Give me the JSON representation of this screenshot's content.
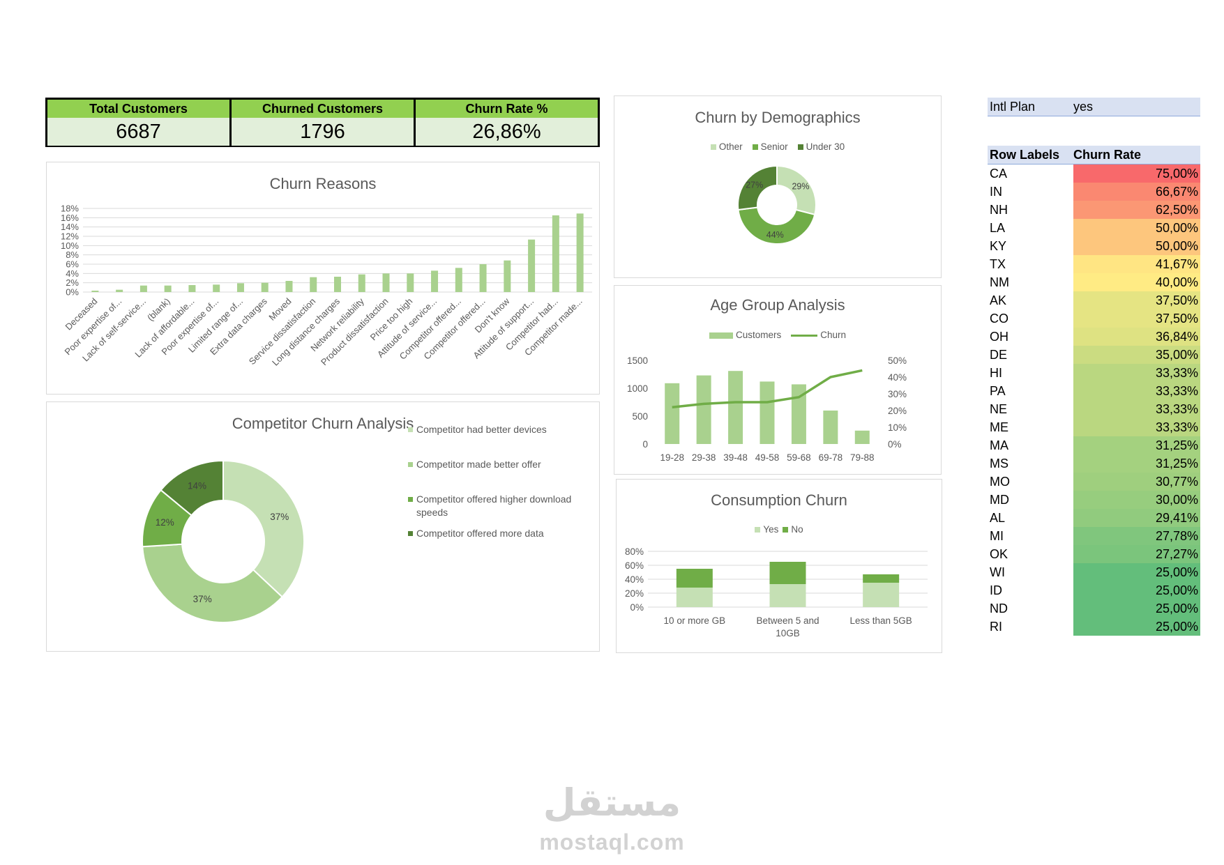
{
  "kpis": [
    {
      "label": "Total Customers",
      "value": "6687"
    },
    {
      "label": "Churned Customers",
      "value": "1796"
    },
    {
      "label": "Churn Rate %",
      "value": "26,86%"
    }
  ],
  "colors": {
    "light": "#a9d18e",
    "mid": "#70ad47",
    "dark": "#548235",
    "pale": "#c5e0b4",
    "header_green": "#92d050",
    "value_bg": "#e2efda"
  },
  "chart_data": [
    {
      "id": "churn-reasons",
      "type": "bar",
      "title": "Churn Reasons",
      "categories": [
        "Deceased",
        "Poor expertise of...",
        "Lack of self-service...",
        "(blank)",
        "Lack of affordable...",
        "Poor expertise of...",
        "Limited range of...",
        "Extra data charges",
        "Moved",
        "Service dissatisfaction",
        "Long distance charges",
        "Network reliability",
        "Product dissatisfaction",
        "Price too high",
        "Attitude of service...",
        "Competitor offered...",
        "Competitor offered...",
        "Don't know",
        "Attitude of support...",
        "Competitor had...",
        "Competitor made..."
      ],
      "values": [
        0.3,
        0.5,
        1.4,
        1.4,
        1.5,
        1.6,
        1.9,
        2.0,
        2.4,
        3.2,
        3.3,
        3.8,
        4.0,
        4.0,
        4.6,
        5.2,
        6.0,
        6.8,
        11.3,
        16.5,
        16.9
      ],
      "yticks": [
        "0%",
        "2%",
        "4%",
        "6%",
        "8%",
        "10%",
        "12%",
        "14%",
        "16%",
        "18%"
      ],
      "ylim": [
        0,
        18
      ]
    },
    {
      "id": "competitor-churn",
      "type": "pie",
      "title": "Competitor Churn Analysis",
      "labels": [
        "Competitor had better devices",
        "Competitor made better offer",
        "Competitor offered higher download speeds",
        "Competitor offered more data"
      ],
      "values": [
        37,
        37,
        12,
        14
      ],
      "value_labels": [
        "37%",
        "37%",
        "12%",
        "14%"
      ],
      "colors": [
        "#c5e0b4",
        "#a9d18e",
        "#70ad47",
        "#548235"
      ]
    },
    {
      "id": "churn-demographics",
      "type": "pie",
      "title": "Churn by Demographics",
      "labels": [
        "Other",
        "Senior",
        "Under 30"
      ],
      "values": [
        29,
        44,
        27
      ],
      "value_labels": [
        "29%",
        "44%",
        "27%"
      ],
      "colors": [
        "#c5e0b4",
        "#70ad47",
        "#548235"
      ]
    },
    {
      "id": "age-group",
      "type": "bar",
      "title": "Age Group Analysis",
      "categories": [
        "19-28",
        "29-38",
        "39-48",
        "49-58",
        "59-68",
        "69-78",
        "79-88"
      ],
      "series": [
        {
          "name": "Customers",
          "type": "bar",
          "values": [
            1090,
            1230,
            1310,
            1120,
            1070,
            600,
            240
          ]
        },
        {
          "name": "Churn",
          "type": "line",
          "values": [
            22,
            24,
            25,
            25,
            28,
            40,
            44
          ]
        }
      ],
      "yticks_left": [
        "0",
        "500",
        "1000",
        "1500"
      ],
      "ylim_left": [
        0,
        1500
      ],
      "yticks_right": [
        "0%",
        "10%",
        "20%",
        "30%",
        "40%",
        "50%"
      ],
      "ylim_right": [
        0,
        50
      ]
    },
    {
      "id": "consumption-churn",
      "type": "bar",
      "title": "Consumption Churn",
      "categories": [
        "10 or more GB",
        "Between 5 and 10GB",
        "Less than 5GB"
      ],
      "series": [
        {
          "name": "Yes",
          "values": [
            28,
            33,
            35
          ]
        },
        {
          "name": "No",
          "values": [
            27,
            32,
            12
          ]
        }
      ],
      "stacked": true,
      "yticks": [
        "0%",
        "20%",
        "40%",
        "60%",
        "80%"
      ],
      "ylim": [
        0,
        80
      ]
    }
  ],
  "pivot": {
    "filter_label": "Intl Plan",
    "filter_value": "yes",
    "header": [
      "Row Labels",
      "Churn Rate"
    ],
    "rows": [
      {
        "state": "CA",
        "rate": "75,00%",
        "value": 75.0
      },
      {
        "state": "IN",
        "rate": "66,67%",
        "value": 66.67
      },
      {
        "state": "NH",
        "rate": "62,50%",
        "value": 62.5
      },
      {
        "state": "LA",
        "rate": "50,00%",
        "value": 50.0
      },
      {
        "state": "KY",
        "rate": "50,00%",
        "value": 50.0
      },
      {
        "state": "TX",
        "rate": "41,67%",
        "value": 41.67
      },
      {
        "state": "NM",
        "rate": "40,00%",
        "value": 40.0
      },
      {
        "state": "AK",
        "rate": "37,50%",
        "value": 37.5
      },
      {
        "state": "CO",
        "rate": "37,50%",
        "value": 37.5
      },
      {
        "state": "OH",
        "rate": "36,84%",
        "value": 36.84
      },
      {
        "state": "DE",
        "rate": "35,00%",
        "value": 35.0
      },
      {
        "state": "HI",
        "rate": "33,33%",
        "value": 33.33
      },
      {
        "state": "PA",
        "rate": "33,33%",
        "value": 33.33
      },
      {
        "state": "NE",
        "rate": "33,33%",
        "value": 33.33
      },
      {
        "state": "ME",
        "rate": "33,33%",
        "value": 33.33
      },
      {
        "state": "MA",
        "rate": "31,25%",
        "value": 31.25
      },
      {
        "state": "MS",
        "rate": "31,25%",
        "value": 31.25
      },
      {
        "state": "MO",
        "rate": "30,77%",
        "value": 30.77
      },
      {
        "state": "MD",
        "rate": "30,00%",
        "value": 30.0
      },
      {
        "state": "AL",
        "rate": "29,41%",
        "value": 29.41
      },
      {
        "state": "MI",
        "rate": "27,78%",
        "value": 27.78
      },
      {
        "state": "OK",
        "rate": "27,27%",
        "value": 27.27
      },
      {
        "state": "WI",
        "rate": "25,00%",
        "value": 25.0
      },
      {
        "state": "ID",
        "rate": "25,00%",
        "value": 25.0
      },
      {
        "state": "ND",
        "rate": "25,00%",
        "value": 25.0
      },
      {
        "state": "RI",
        "rate": "25,00%",
        "value": 25.0
      }
    ]
  },
  "watermark": {
    "arabic": "مستقل",
    "latin": "mostaql.com"
  }
}
